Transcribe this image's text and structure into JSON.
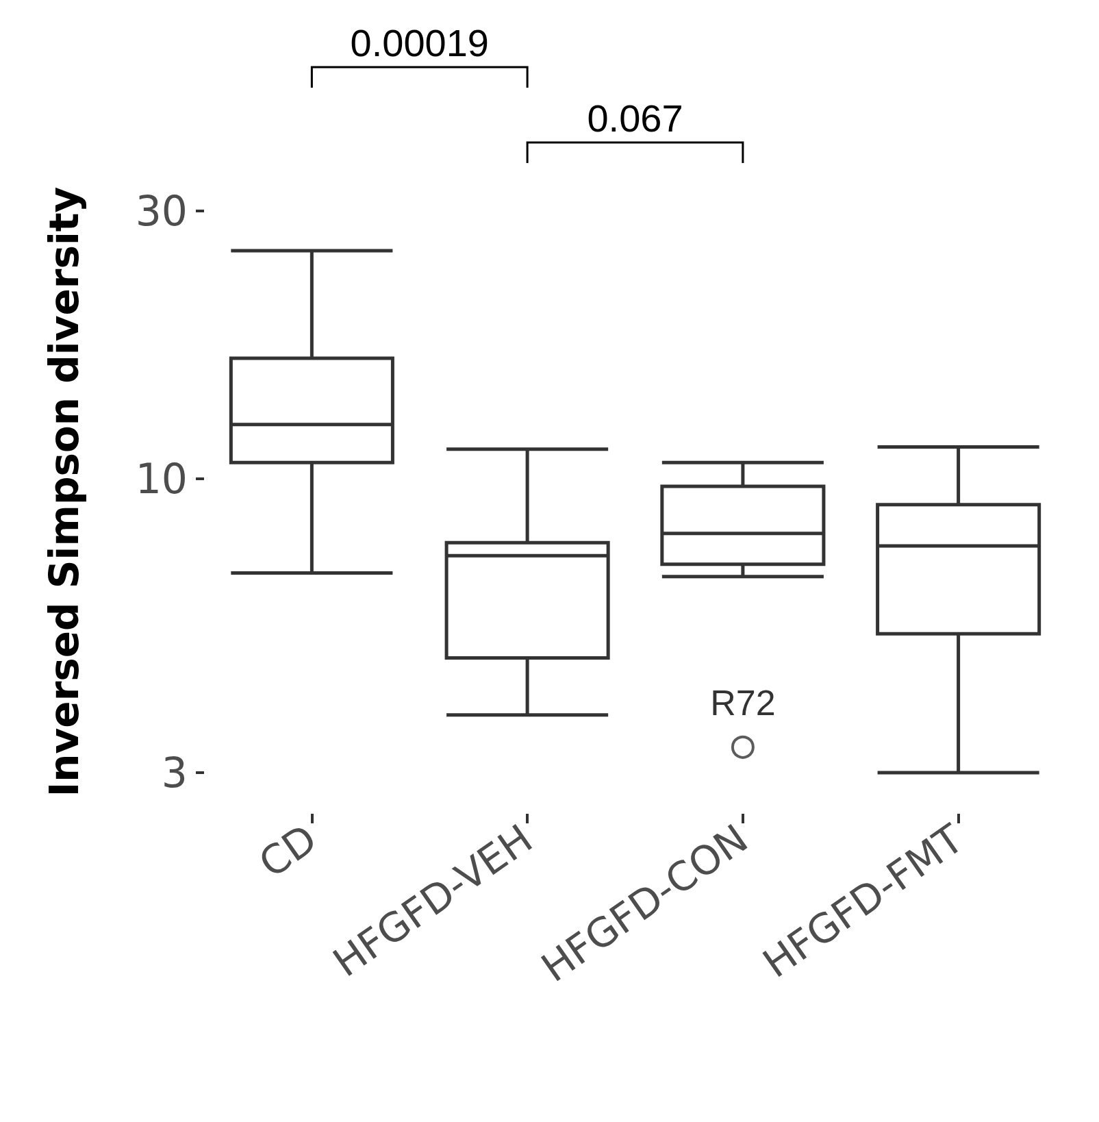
{
  "chart_data": {
    "type": "box",
    "ylabel": "Inversed Simpson diversity",
    "categories": [
      "CD",
      "HFGFD-VEH",
      "HFGFD-CON",
      "HFGFD-FMT"
    ],
    "boxes": [
      {
        "low": 6.8,
        "q1": 10.7,
        "median": 12.5,
        "q3": 16.4,
        "high": 25.5
      },
      {
        "low": 3.8,
        "q1": 4.8,
        "median": 7.3,
        "q3": 7.7,
        "high": 11.3
      },
      {
        "low": 6.7,
        "q1": 7.05,
        "median": 8.0,
        "q3": 9.7,
        "high": 10.7,
        "outliers": [
          3.33
        ]
      },
      {
        "low": 3.0,
        "q1": 5.3,
        "median": 7.6,
        "q3": 9.0,
        "high": 11.4
      }
    ],
    "log": true,
    "ylim": [
      3,
      30
    ],
    "yticks": [
      3,
      10,
      30
    ],
    "grid": false,
    "annotations": [
      "0.00019",
      "0.067",
      "R72"
    ]
  }
}
